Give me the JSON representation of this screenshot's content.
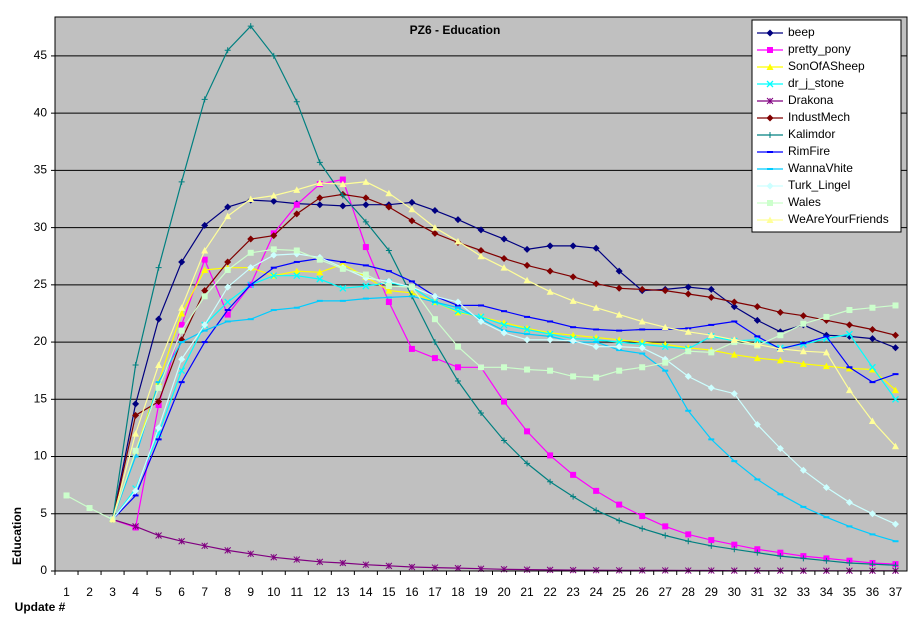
{
  "chart_data": {
    "type": "line",
    "title": "PZ6 - Education",
    "x_label": "Update #",
    "y_label": "Education",
    "categories": [
      "1",
      "2",
      "3",
      "4",
      "5",
      "6",
      "7",
      "8",
      "9",
      "10",
      "11",
      "12",
      "13",
      "14",
      "15",
      "16",
      "17",
      "18",
      "19",
      "20",
      "21",
      "22",
      "23",
      "24",
      "25",
      "26",
      "27",
      "28",
      "29",
      "30",
      "31",
      "32",
      "33",
      "34",
      "35",
      "36",
      "37"
    ],
    "ylim": [
      0,
      48.4
    ],
    "yticks": [
      0,
      5,
      10,
      15,
      20,
      25,
      30,
      35,
      40,
      45
    ],
    "grid": true,
    "legend": "top-right",
    "series": [
      {
        "name": "beep",
        "color": "#000080",
        "marker": "diamond",
        "values": [
          null,
          null,
          4.5,
          14.6,
          22,
          27,
          30.2,
          31.8,
          32.4,
          32.3,
          32.1,
          32,
          31.9,
          32,
          32,
          32.2,
          31.5,
          30.7,
          29.8,
          29,
          28.1,
          28.4,
          28.4,
          28.2,
          26.2,
          24.5,
          24.6,
          24.8,
          24.6,
          23.1,
          21.9,
          20.9,
          21.5,
          20.6,
          20.5,
          20.3,
          19.5
        ]
      },
      {
        "name": "pretty_pony",
        "color": "#ff00ff",
        "marker": "square",
        "values": [
          null,
          null,
          4.5,
          3.8,
          14.5,
          21.5,
          27.2,
          22.4,
          25,
          29.5,
          32,
          33.8,
          34.2,
          28.3,
          23.5,
          19.4,
          18.6,
          17.8,
          17.8,
          14.8,
          12.2,
          10.1,
          8.4,
          7,
          5.8,
          4.8,
          3.9,
          3.2,
          2.7,
          2.3,
          1.9,
          1.6,
          1.3,
          1.1,
          0.9,
          0.7,
          0.6
        ]
      },
      {
        "name": "SonOfASheep",
        "color": "#ffff00",
        "marker": "triangle",
        "values": [
          null,
          null,
          4.5,
          10.5,
          16.5,
          22.5,
          26.3,
          26.5,
          26.5,
          25.8,
          26.2,
          26.1,
          26.8,
          25.7,
          24.5,
          24.3,
          23.5,
          22.6,
          22.2,
          21.7,
          21.2,
          20.8,
          20.6,
          20.4,
          20.2,
          20,
          19.8,
          19.5,
          19.3,
          18.9,
          18.6,
          18.4,
          18.1,
          17.9,
          17.7,
          17.6,
          15.8
        ]
      },
      {
        "name": "dr_j_stone",
        "color": "#00ffff",
        "marker": "x",
        "values": [
          null,
          null,
          4.5,
          7.2,
          12,
          17.5,
          21.5,
          23.5,
          25,
          25.8,
          25.8,
          25.5,
          24.7,
          24.9,
          25.2,
          24.8,
          23.5,
          22.7,
          22.2,
          21.5,
          21.1,
          20.7,
          20.3,
          20.2,
          20,
          19.8,
          19.6,
          19.4,
          20.5,
          20.1,
          20.2,
          19.5,
          19.8,
          20.3,
          20.7,
          17.8,
          15
        ]
      },
      {
        "name": "Drakona",
        "color": "#800080",
        "marker": "star",
        "values": [
          null,
          null,
          4.5,
          3.9,
          3.1,
          2.6,
          2.2,
          1.8,
          1.5,
          1.2,
          1,
          0.8,
          0.7,
          0.55,
          0.45,
          0.35,
          0.3,
          0.25,
          0.2,
          0.15,
          0.12,
          0.1,
          0.08,
          0.07,
          0.06,
          0.05,
          0.05,
          0.04,
          0.04,
          0.03,
          0.03,
          0.03,
          0.02,
          0.02,
          0.02,
          0.02,
          0.02
        ]
      },
      {
        "name": "IndustMech",
        "color": "#800000",
        "marker": "diamond",
        "values": [
          null,
          null,
          4.5,
          13.6,
          14.8,
          20.2,
          24.5,
          27,
          29,
          29.3,
          31.2,
          32.6,
          32.9,
          32.6,
          31.8,
          30.6,
          29.5,
          28.7,
          28,
          27.3,
          26.7,
          26.2,
          25.7,
          25.1,
          24.7,
          24.6,
          24.5,
          24.2,
          23.9,
          23.5,
          23.1,
          22.6,
          22.3,
          21.9,
          21.5,
          21.1,
          20.6
        ]
      },
      {
        "name": "Kalimdor",
        "color": "#008080",
        "marker": "plus",
        "values": [
          null,
          null,
          4.5,
          18,
          26.5,
          34,
          41.2,
          45.5,
          47.6,
          45,
          41,
          35.7,
          32.8,
          30.5,
          28,
          24,
          20,
          16.6,
          13.8,
          11.4,
          9.4,
          7.8,
          6.5,
          5.3,
          4.4,
          3.7,
          3.1,
          2.6,
          2.2,
          1.9,
          1.6,
          1.3,
          1.1,
          0.9,
          0.7,
          0.6,
          0.5
        ]
      },
      {
        "name": "RimFire",
        "color": "#0000ff",
        "marker": "dash",
        "values": [
          null,
          null,
          4.5,
          6.6,
          11.5,
          16.5,
          20,
          22.8,
          25,
          26.5,
          27,
          27.3,
          27,
          26.7,
          26.2,
          25.3,
          24,
          23.2,
          23.2,
          22.7,
          22.2,
          21.8,
          21.3,
          21.1,
          21,
          21.1,
          21.1,
          21.2,
          21.5,
          21.8,
          20.5,
          19.4,
          19.9,
          20.5,
          17.8,
          16.5,
          17.2
        ]
      },
      {
        "name": "WannaVhite",
        "color": "#00ccff",
        "marker": "dash",
        "values": [
          null,
          null,
          4.5,
          10,
          16.5,
          20,
          21,
          21.8,
          22,
          22.8,
          23,
          23.6,
          23.6,
          23.8,
          23.9,
          24,
          23.5,
          23,
          22,
          21,
          20.7,
          20.5,
          20,
          20,
          19.3,
          19,
          17.5,
          14,
          11.5,
          9.6,
          8,
          6.7,
          5.6,
          4.7,
          3.9,
          3.2,
          2.6
        ]
      },
      {
        "name": "Turk_Lingel",
        "color": "#ccffff",
        "marker": "diamond",
        "values": [
          null,
          null,
          4.5,
          7,
          12.5,
          18.5,
          21.5,
          24.8,
          26.5,
          27.6,
          27.7,
          27.4,
          26.5,
          25.6,
          25.3,
          24.8,
          24,
          23.5,
          21.8,
          20.8,
          20.2,
          20.2,
          20.1,
          19.6,
          19.6,
          19.5,
          18.5,
          17,
          16,
          15.5,
          12.8,
          10.7,
          8.8,
          7.3,
          6,
          5,
          4.1
        ]
      },
      {
        "name": "Wales",
        "color": "#ccffcc",
        "marker": "square",
        "values": [
          6.6,
          5.5,
          4.5,
          10.5,
          16,
          21,
          24,
          26.3,
          27.8,
          28.1,
          28,
          27.2,
          26.4,
          25.9,
          24.9,
          24.8,
          22,
          19.6,
          17.8,
          17.8,
          17.6,
          17.5,
          17,
          16.9,
          17.5,
          17.8,
          18.2,
          19.2,
          19.1,
          20,
          19.7,
          20.6,
          21.6,
          22.2,
          22.8,
          23,
          23.2
        ]
      },
      {
        "name": "WeAreYourFriends",
        "color": "#ffff99",
        "marker": "triangle",
        "values": [
          null,
          null,
          4.5,
          12,
          18,
          23,
          28,
          31,
          32.5,
          32.8,
          33.3,
          33.9,
          33.8,
          34,
          33,
          31.6,
          30,
          28.8,
          27.5,
          26.5,
          25.4,
          24.4,
          23.6,
          23,
          22.4,
          21.8,
          21.3,
          20.9,
          20.6,
          20.2,
          19.8,
          19.4,
          19.2,
          19.1,
          15.8,
          13.1,
          10.9
        ]
      }
    ]
  }
}
